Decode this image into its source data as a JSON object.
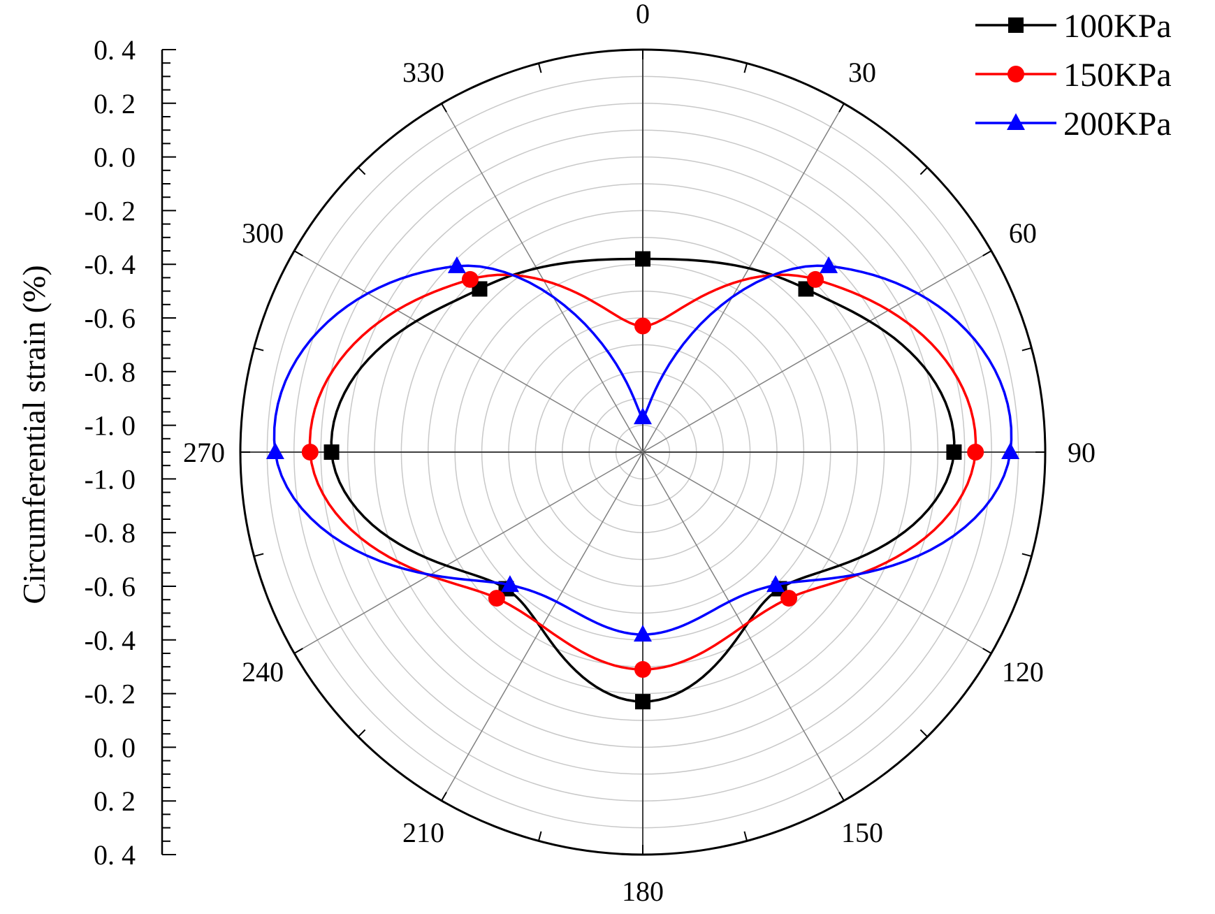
{
  "chart_data": {
    "type": "polar-line",
    "title": "",
    "radial_axis": {
      "label": "Circumferential strain (%)",
      "range": [
        -1.1,
        0.4
      ],
      "ticks": [
        0.4,
        0.2,
        0.0,
        -0.2,
        -0.4,
        -0.6,
        -0.8,
        -1.0
      ],
      "tick_labels_top": [
        "0. 4",
        "0. 2",
        "0. 0",
        "-0. 2",
        "-0. 4",
        "-0. 6",
        "-0. 8",
        "-1. 0"
      ],
      "tick_labels_bottom": [
        "-1. 0",
        "-0. 8",
        "-0. 6",
        "-0. 4",
        "-0. 2",
        "0. 0",
        "0. 2",
        "0. 4"
      ],
      "grid": true
    },
    "angular_axis": {
      "unit": "degree",
      "direction": "clockwise",
      "zero_at": "top",
      "ticks": [
        0,
        30,
        60,
        90,
        120,
        150,
        180,
        210,
        240,
        270,
        300,
        330
      ],
      "tick_labels": [
        "0",
        "30",
        "60",
        "90",
        "120",
        "150",
        "180",
        "210",
        "240",
        "270",
        "300",
        "330"
      ]
    },
    "legend": {
      "position": "top-right"
    },
    "series": [
      {
        "name": "100KPa",
        "color": "#000000",
        "marker": "square",
        "theta": [
          0,
          45,
          90,
          135,
          180,
          225,
          270,
          315
        ],
        "r": [
          -0.38,
          -0.24,
          0.06,
          -0.38,
          -0.17,
          -0.38,
          0.06,
          -0.24
        ]
      },
      {
        "name": "150KPa",
        "color": "#ff0000",
        "marker": "circle",
        "theta": [
          0,
          45,
          90,
          135,
          180,
          225,
          270,
          315
        ],
        "r": [
          -0.63,
          -0.19,
          0.14,
          -0.33,
          -0.29,
          -0.33,
          0.14,
          -0.19
        ]
      },
      {
        "name": "200KPa",
        "color": "#0000ff",
        "marker": "triangle",
        "theta": [
          0,
          45,
          90,
          135,
          180,
          225,
          270,
          315
        ],
        "r": [
          -0.97,
          -0.12,
          0.27,
          -0.4,
          -0.42,
          -0.4,
          0.27,
          -0.12
        ]
      }
    ]
  }
}
